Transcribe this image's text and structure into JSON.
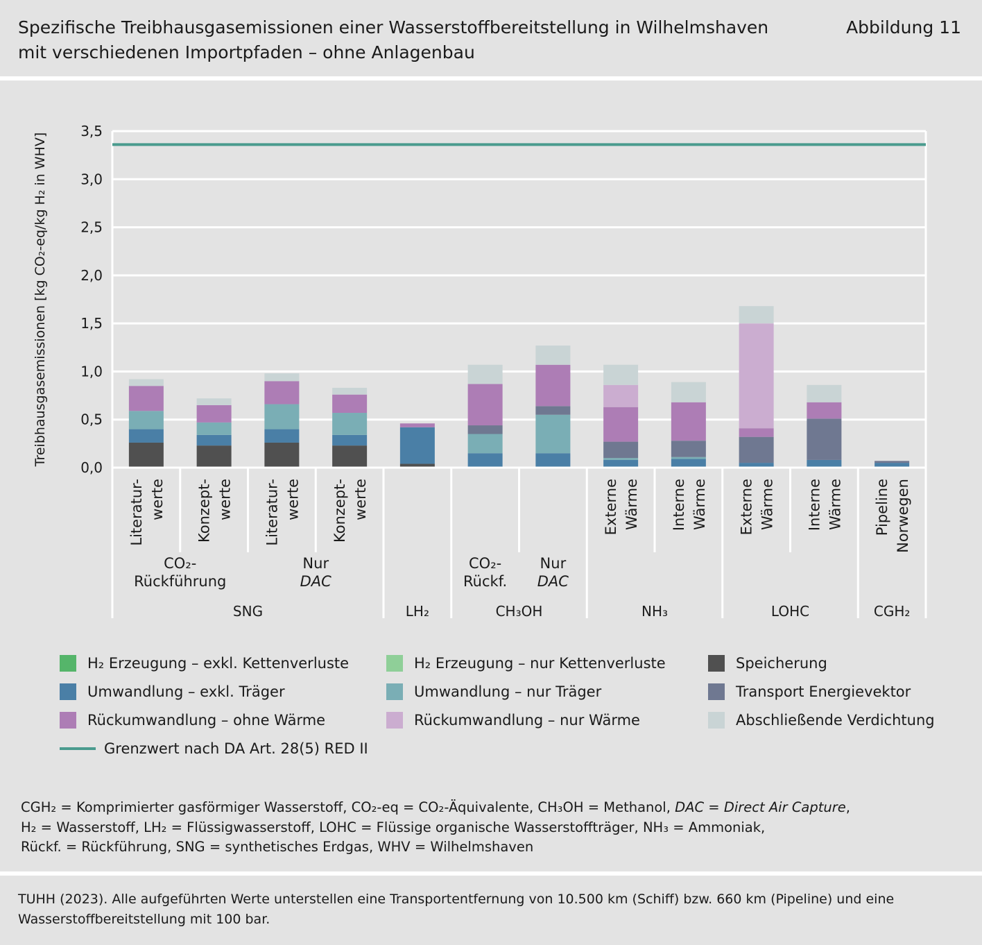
{
  "header": {
    "title_line1": "Spezifische Treibhausgasemissionen einer Wasserstoffbereitstellung in Wilhelmshaven",
    "title_line2": "mit verschiedenen Importpfaden – ohne Anlagenbau",
    "figure_number": "Abbildung 11"
  },
  "colors": {
    "panel_bg": "#e3e3e3",
    "grid": "#ffffff",
    "limit_line": "#4a9b8e",
    "segments": {
      "h2_excl": "#55b56a",
      "h2_only": "#8fcf98",
      "storage": "#505050",
      "conv_excl": "#4a7fa6",
      "conv_only": "#7aaeb5",
      "transport": "#6f7891",
      "reconv_excl": "#ad7db5",
      "reconv_only": "#cbadd0",
      "compress": "#c9d4d5"
    }
  },
  "chart_data": {
    "type": "bar",
    "stacked": true,
    "ylabel": "Treibhausgasemissionen [kg CO₂-eq/kg H₂ in WHV]",
    "ylim": [
      0,
      3.5
    ],
    "yticks": [
      "0,0",
      "0,5",
      "1,0",
      "1,5",
      "2,0",
      "2,5",
      "3,0",
      "3,5"
    ],
    "grid": true,
    "limit_line": {
      "value": 3.36,
      "label": "Grenzwert nach DA Art. 28(5) RED II"
    },
    "series_keys": [
      "h2_excl",
      "h2_only",
      "storage",
      "conv_excl",
      "conv_only",
      "transport",
      "reconv_excl",
      "reconv_only",
      "compress"
    ],
    "bars": [
      {
        "label": "Literatur-\nwerte",
        "values": {
          "h2_excl": 0.01,
          "storage": 0.25,
          "conv_excl": 0.14,
          "conv_only": 0.19,
          "reconv_excl": 0.26,
          "compress": 0.07
        }
      },
      {
        "label": "Konzept-\nwerte",
        "values": {
          "storage": 0.23,
          "conv_excl": 0.11,
          "conv_only": 0.13,
          "reconv_excl": 0.18,
          "compress": 0.07
        }
      },
      {
        "label": "Literatur-\nwerte",
        "values": {
          "h2_excl": 0.01,
          "storage": 0.25,
          "conv_excl": 0.14,
          "conv_only": 0.26,
          "reconv_excl": 0.24,
          "compress": 0.08
        }
      },
      {
        "label": "Konzept-\nwerte",
        "values": {
          "storage": 0.23,
          "conv_excl": 0.11,
          "conv_only": 0.23,
          "reconv_excl": 0.19,
          "compress": 0.07
        }
      },
      {
        "label": "",
        "values": {
          "storage": 0.04,
          "conv_excl": 0.38,
          "reconv_excl": 0.04
        }
      },
      {
        "label": "",
        "values": {
          "conv_excl": 0.15,
          "conv_only": 0.2,
          "transport": 0.09,
          "reconv_excl": 0.43,
          "compress": 0.2
        }
      },
      {
        "label": "",
        "values": {
          "conv_excl": 0.15,
          "conv_only": 0.4,
          "transport": 0.09,
          "reconv_excl": 0.43,
          "compress": 0.2
        }
      },
      {
        "label": "Externe\nWärme",
        "values": {
          "conv_excl": 0.08,
          "conv_only": 0.02,
          "transport": 0.17,
          "reconv_excl": 0.36,
          "reconv_only": 0.23,
          "compress": 0.21
        }
      },
      {
        "label": "Interne\nWärme",
        "values": {
          "conv_excl": 0.09,
          "conv_only": 0.02,
          "transport": 0.17,
          "reconv_excl": 0.4,
          "compress": 0.21
        }
      },
      {
        "label": "Externe\nWärme",
        "values": {
          "conv_excl": 0.05,
          "transport": 0.27,
          "reconv_excl": 0.09,
          "reconv_only": 1.09,
          "compress": 0.18
        }
      },
      {
        "label": "Interne\nWärme",
        "values": {
          "conv_excl": 0.08,
          "transport": 0.43,
          "reconv_excl": 0.17,
          "compress": 0.18
        }
      },
      {
        "label": "Pipeline\nNorwegen",
        "values": {
          "conv_excl": 0.05,
          "transport": 0.02
        }
      }
    ],
    "subgroups": [
      {
        "label": "CO₂-\nRückführung",
        "from": 0,
        "to": 1
      },
      {
        "label": "Nur\nDAC",
        "from": 2,
        "to": 3,
        "italic_line": 1
      },
      {
        "label": "CO₂-\nRückf.",
        "from": 5,
        "to": 5
      },
      {
        "label": "Nur\nDAC",
        "from": 6,
        "to": 6,
        "italic_line": 1
      }
    ],
    "groups": [
      {
        "label": "SNG",
        "from": 0,
        "to": 3
      },
      {
        "label": "LH₂",
        "from": 4,
        "to": 4
      },
      {
        "label": "CH₃OH",
        "from": 5,
        "to": 6
      },
      {
        "label": "NH₃",
        "from": 7,
        "to": 8
      },
      {
        "label": "LOHC",
        "from": 9,
        "to": 10
      },
      {
        "label": "CGH₂",
        "from": 11,
        "to": 11
      }
    ],
    "legend": [
      {
        "key": "h2_excl",
        "label": "H₂ Erzeugung – exkl. Kettenverluste"
      },
      {
        "key": "h2_only",
        "label": "H₂ Erzeugung – nur Kettenverluste"
      },
      {
        "key": "storage",
        "label": "Speicherung"
      },
      {
        "key": "conv_excl",
        "label": "Umwandlung – exkl. Träger"
      },
      {
        "key": "conv_only",
        "label": "Umwandlung – nur Träger"
      },
      {
        "key": "transport",
        "label": "Transport Energievektor"
      },
      {
        "key": "reconv_excl",
        "label": "Rückumwandlung – ohne Wärme"
      },
      {
        "key": "reconv_only",
        "label": "Rückumwandlung – nur Wärme"
      },
      {
        "key": "compress",
        "label": "Abschließende Verdichtung"
      }
    ]
  },
  "abbreviations": {
    "line1_a": "CGH₂ = Komprimierter gasförmiger Wasserstoff, CO₂-eq = CO₂-Äquivalente, CH₃OH = Methanol, ",
    "line1_b": "DAC = Direct Air Capture",
    "line1_c": ",",
    "line2": "H₂ = Wasserstoff, LH₂ = Flüssigwasserstoff, LOHC = Flüssige organische Wasserstoffträger, NH₃ = Ammoniak,",
    "line3": "Rückf. = Rückführung, SNG = synthetisches Erdgas, WHV = Wilhelmshaven"
  },
  "source": {
    "line1": "TUHH (2023). Alle aufgeführten Werte unterstellen eine Transportentfernung von 10.500 km (Schiff) bzw. 660 km (Pipeline) und eine",
    "line2": "Wasserstoffbereitstellung mit 100 bar."
  }
}
